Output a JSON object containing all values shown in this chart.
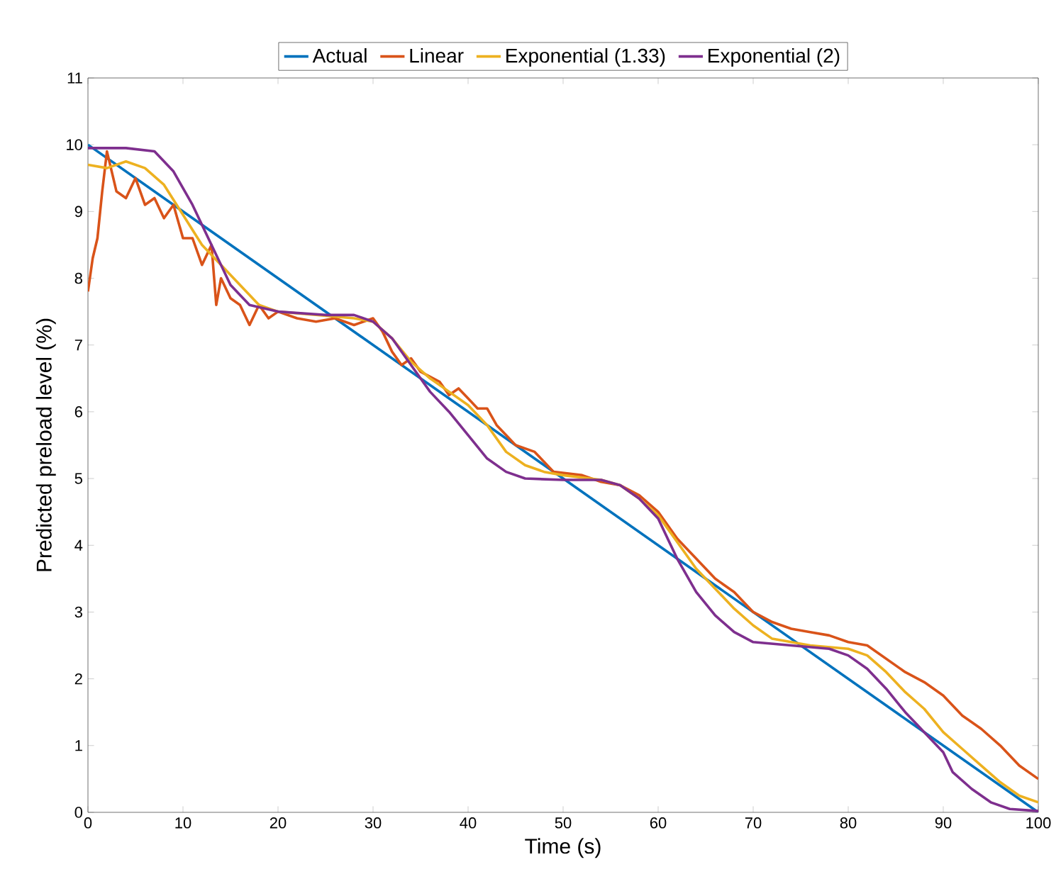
{
  "chart_data": {
    "type": "line",
    "xlabel": "Time (s)",
    "ylabel": "Predicted preload level (%)",
    "xlim": [
      0,
      100
    ],
    "ylim": [
      0,
      11
    ],
    "xticks": [
      0,
      10,
      20,
      30,
      40,
      50,
      60,
      70,
      80,
      90,
      100
    ],
    "yticks": [
      0,
      1,
      2,
      3,
      4,
      5,
      6,
      7,
      8,
      9,
      10,
      11
    ],
    "legend": "top",
    "grid": false,
    "marker": "none",
    "line_style": "solid",
    "series": [
      {
        "name": "Actual",
        "color": "#0072bd",
        "x": [
          0,
          100
        ],
        "values": [
          10,
          0
        ]
      },
      {
        "name": "Linear",
        "color": "#d95319",
        "x": [
          0,
          0.5,
          1,
          1.5,
          2,
          2.5,
          3,
          4,
          5,
          6,
          7,
          8,
          9,
          10,
          11,
          12,
          13,
          13.5,
          14,
          15,
          16,
          17,
          18,
          19,
          20,
          22,
          24,
          26,
          28,
          30,
          31,
          32,
          33,
          34,
          35,
          37,
          38,
          39,
          40,
          41,
          42,
          43,
          45,
          47,
          49,
          52,
          54,
          56,
          58,
          60,
          62,
          64,
          66,
          68,
          70,
          72,
          74,
          76,
          78,
          80,
          82,
          84,
          86,
          88,
          90,
          92,
          94,
          96,
          98,
          100
        ],
        "values": [
          7.8,
          8.3,
          8.6,
          9.3,
          9.9,
          9.6,
          9.3,
          9.2,
          9.5,
          9.1,
          9.2,
          8.9,
          9.1,
          8.6,
          8.6,
          8.2,
          8.5,
          7.6,
          8.0,
          7.7,
          7.6,
          7.3,
          7.6,
          7.4,
          7.5,
          7.4,
          7.35,
          7.4,
          7.3,
          7.4,
          7.2,
          6.9,
          6.7,
          6.8,
          6.6,
          6.45,
          6.25,
          6.35,
          6.2,
          6.05,
          6.05,
          5.8,
          5.5,
          5.4,
          5.1,
          5.05,
          4.95,
          4.9,
          4.75,
          4.5,
          4.1,
          3.8,
          3.5,
          3.3,
          3.0,
          2.85,
          2.75,
          2.7,
          2.65,
          2.55,
          2.5,
          2.3,
          2.1,
          1.95,
          1.75,
          1.45,
          1.25,
          1.0,
          0.7,
          0.5
        ]
      },
      {
        "name": "Exponential (1.33)",
        "color": "#edb120",
        "x": [
          0,
          2,
          4,
          6,
          8,
          10,
          12,
          14,
          16,
          18,
          20,
          24,
          28,
          30,
          32,
          34,
          36,
          38,
          40,
          42,
          44,
          46,
          48,
          50,
          54,
          56,
          58,
          60,
          62,
          64,
          66,
          68,
          70,
          72,
          76,
          80,
          82,
          84,
          86,
          88,
          90,
          92,
          94,
          96,
          98,
          100
        ],
        "values": [
          9.7,
          9.65,
          9.75,
          9.65,
          9.4,
          8.95,
          8.5,
          8.2,
          7.9,
          7.6,
          7.5,
          7.45,
          7.4,
          7.35,
          7.1,
          6.75,
          6.5,
          6.3,
          6.1,
          5.8,
          5.4,
          5.2,
          5.1,
          5.05,
          4.98,
          4.9,
          4.7,
          4.45,
          4.05,
          3.65,
          3.35,
          3.05,
          2.8,
          2.6,
          2.5,
          2.45,
          2.35,
          2.1,
          1.8,
          1.55,
          1.2,
          0.95,
          0.7,
          0.45,
          0.25,
          0.15
        ]
      },
      {
        "name": "Exponential (2)",
        "color": "#7e2f8e",
        "x": [
          0,
          4,
          7,
          9,
          11,
          13,
          15,
          17,
          20,
          25,
          28,
          30,
          32,
          34,
          36,
          38,
          40,
          42,
          44,
          46,
          50,
          54,
          56,
          58,
          60,
          62,
          64,
          66,
          68,
          70,
          74,
          78,
          80,
          82,
          84,
          86,
          88,
          90,
          91,
          93,
          95,
          97,
          100
        ],
        "values": [
          9.95,
          9.95,
          9.9,
          9.6,
          9.1,
          8.5,
          7.9,
          7.6,
          7.5,
          7.45,
          7.45,
          7.35,
          7.1,
          6.7,
          6.3,
          6.0,
          5.65,
          5.3,
          5.1,
          5.0,
          4.98,
          4.98,
          4.9,
          4.7,
          4.4,
          3.8,
          3.3,
          2.95,
          2.7,
          2.55,
          2.5,
          2.45,
          2.35,
          2.15,
          1.85,
          1.5,
          1.2,
          0.9,
          0.6,
          0.35,
          0.15,
          0.05,
          0.02
        ]
      }
    ]
  }
}
